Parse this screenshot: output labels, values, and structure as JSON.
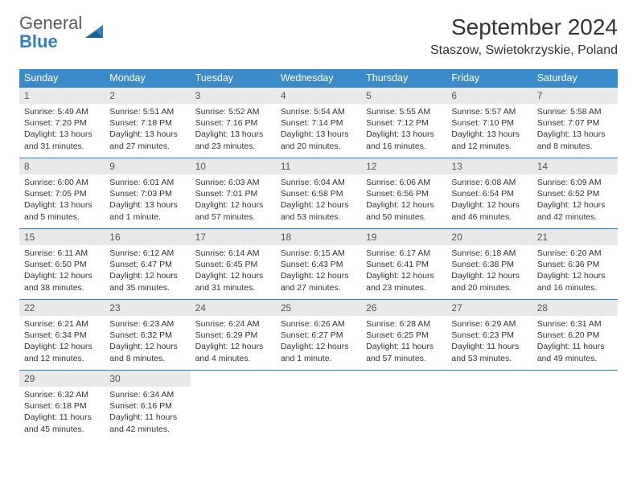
{
  "logo": {
    "general": "General",
    "blue": "Blue"
  },
  "header": {
    "title": "September 2024",
    "subtitle": "Staszow, Swietokrzyskie, Poland"
  },
  "colors": {
    "header_bg": "#3b8bca",
    "header_text": "#ffffff",
    "daynum_bg": "#e9e9e9",
    "row_divider": "#2f7fc1",
    "logo_gray": "#5a5a5a",
    "logo_blue": "#2f7fc1"
  },
  "weekdays": [
    "Sunday",
    "Monday",
    "Tuesday",
    "Wednesday",
    "Thursday",
    "Friday",
    "Saturday"
  ],
  "days": [
    {
      "n": "1",
      "sunrise": "5:49 AM",
      "sunset": "7:20 PM",
      "daylight": "13 hours and 31 minutes."
    },
    {
      "n": "2",
      "sunrise": "5:51 AM",
      "sunset": "7:18 PM",
      "daylight": "13 hours and 27 minutes."
    },
    {
      "n": "3",
      "sunrise": "5:52 AM",
      "sunset": "7:16 PM",
      "daylight": "13 hours and 23 minutes."
    },
    {
      "n": "4",
      "sunrise": "5:54 AM",
      "sunset": "7:14 PM",
      "daylight": "13 hours and 20 minutes."
    },
    {
      "n": "5",
      "sunrise": "5:55 AM",
      "sunset": "7:12 PM",
      "daylight": "13 hours and 16 minutes."
    },
    {
      "n": "6",
      "sunrise": "5:57 AM",
      "sunset": "7:10 PM",
      "daylight": "13 hours and 12 minutes."
    },
    {
      "n": "7",
      "sunrise": "5:58 AM",
      "sunset": "7:07 PM",
      "daylight": "13 hours and 8 minutes."
    },
    {
      "n": "8",
      "sunrise": "6:00 AM",
      "sunset": "7:05 PM",
      "daylight": "13 hours and 5 minutes."
    },
    {
      "n": "9",
      "sunrise": "6:01 AM",
      "sunset": "7:03 PM",
      "daylight": "13 hours and 1 minute."
    },
    {
      "n": "10",
      "sunrise": "6:03 AM",
      "sunset": "7:01 PM",
      "daylight": "12 hours and 57 minutes."
    },
    {
      "n": "11",
      "sunrise": "6:04 AM",
      "sunset": "6:58 PM",
      "daylight": "12 hours and 53 minutes."
    },
    {
      "n": "12",
      "sunrise": "6:06 AM",
      "sunset": "6:56 PM",
      "daylight": "12 hours and 50 minutes."
    },
    {
      "n": "13",
      "sunrise": "6:08 AM",
      "sunset": "6:54 PM",
      "daylight": "12 hours and 46 minutes."
    },
    {
      "n": "14",
      "sunrise": "6:09 AM",
      "sunset": "6:52 PM",
      "daylight": "12 hours and 42 minutes."
    },
    {
      "n": "15",
      "sunrise": "6:11 AM",
      "sunset": "6:50 PM",
      "daylight": "12 hours and 38 minutes."
    },
    {
      "n": "16",
      "sunrise": "6:12 AM",
      "sunset": "6:47 PM",
      "daylight": "12 hours and 35 minutes."
    },
    {
      "n": "17",
      "sunrise": "6:14 AM",
      "sunset": "6:45 PM",
      "daylight": "12 hours and 31 minutes."
    },
    {
      "n": "18",
      "sunrise": "6:15 AM",
      "sunset": "6:43 PM",
      "daylight": "12 hours and 27 minutes."
    },
    {
      "n": "19",
      "sunrise": "6:17 AM",
      "sunset": "6:41 PM",
      "daylight": "12 hours and 23 minutes."
    },
    {
      "n": "20",
      "sunrise": "6:18 AM",
      "sunset": "6:38 PM",
      "daylight": "12 hours and 20 minutes."
    },
    {
      "n": "21",
      "sunrise": "6:20 AM",
      "sunset": "6:36 PM",
      "daylight": "12 hours and 16 minutes."
    },
    {
      "n": "22",
      "sunrise": "6:21 AM",
      "sunset": "6:34 PM",
      "daylight": "12 hours and 12 minutes."
    },
    {
      "n": "23",
      "sunrise": "6:23 AM",
      "sunset": "6:32 PM",
      "daylight": "12 hours and 8 minutes."
    },
    {
      "n": "24",
      "sunrise": "6:24 AM",
      "sunset": "6:29 PM",
      "daylight": "12 hours and 4 minutes."
    },
    {
      "n": "25",
      "sunrise": "6:26 AM",
      "sunset": "6:27 PM",
      "daylight": "12 hours and 1 minute."
    },
    {
      "n": "26",
      "sunrise": "6:28 AM",
      "sunset": "6:25 PM",
      "daylight": "11 hours and 57 minutes."
    },
    {
      "n": "27",
      "sunrise": "6:29 AM",
      "sunset": "6:23 PM",
      "daylight": "11 hours and 53 minutes."
    },
    {
      "n": "28",
      "sunrise": "6:31 AM",
      "sunset": "6:20 PM",
      "daylight": "11 hours and 49 minutes."
    },
    {
      "n": "29",
      "sunrise": "6:32 AM",
      "sunset": "6:18 PM",
      "daylight": "11 hours and 45 minutes."
    },
    {
      "n": "30",
      "sunrise": "6:34 AM",
      "sunset": "6:16 PM",
      "daylight": "11 hours and 42 minutes."
    }
  ],
  "labels": {
    "sunrise": "Sunrise: ",
    "sunset": "Sunset: ",
    "daylight": "Daylight: "
  }
}
